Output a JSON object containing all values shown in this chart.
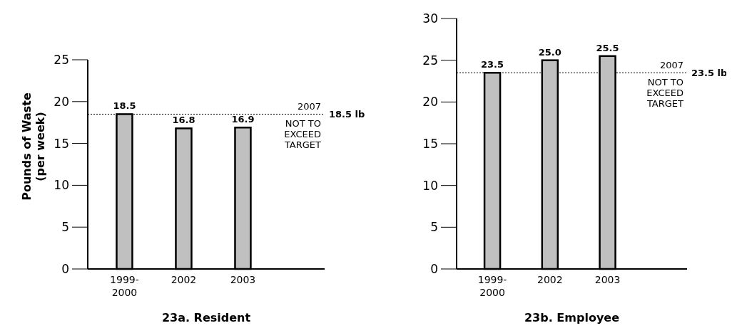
{
  "chart_data": [
    {
      "type": "bar",
      "title": "23a. Resident",
      "ylabel": "Pounds of Waste\n(per week)",
      "categories": [
        "1999-\n2000",
        "2002",
        "2003",
        null
      ],
      "values": [
        18.5,
        16.8,
        16.9,
        null
      ],
      "value_labels": [
        "18.5",
        "16.8",
        "16.9",
        null
      ],
      "color": "#c0c0c0",
      "ylim": [
        0,
        25
      ],
      "yticks": [
        0,
        5,
        10,
        15,
        20,
        25
      ],
      "ref_lines": [
        {
          "axis": "y",
          "value": 18.5,
          "label": "18.5 lb",
          "line_style": "dotted"
        }
      ],
      "annotations": [
        "2007",
        "NOT TO\nEXCEED\nTARGET"
      ]
    },
    {
      "type": "bar",
      "title": "23b. Employee",
      "categories": [
        "1999-\n2000",
        "2002",
        "2003",
        null
      ],
      "values": [
        23.5,
        25.0,
        25.5,
        null
      ],
      "value_labels": [
        "23.5",
        "25.0",
        "25.5",
        null
      ],
      "color": "#c0c0c0",
      "ylim": [
        0,
        30
      ],
      "yticks": [
        0,
        5,
        10,
        15,
        20,
        25,
        30
      ],
      "ref_lines": [
        {
          "axis": "y",
          "value": 23.5,
          "label": "23.5 lb",
          "line_style": "dotted"
        }
      ],
      "annotations": [
        "2007",
        "NOT TO\nEXCEED\nTARGET"
      ]
    }
  ]
}
